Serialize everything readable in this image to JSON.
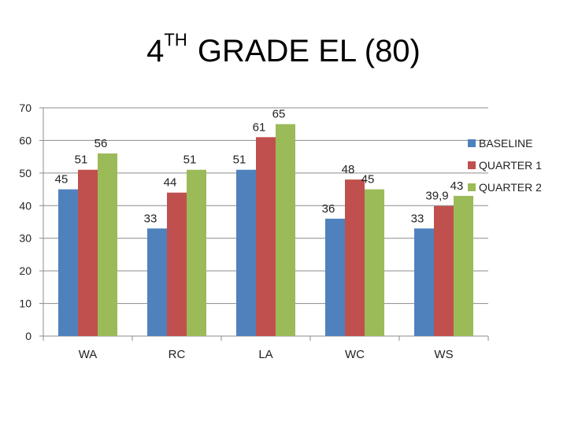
{
  "title": {
    "prefix": "4",
    "superscript": "TH",
    "rest": "GRADE EL (80)"
  },
  "chart_data": {
    "type": "bar",
    "title": "4TH GRADE EL (80)",
    "categories": [
      "WA",
      "RC",
      "LA",
      "WC",
      "WS"
    ],
    "series": [
      {
        "name": "BASELINE",
        "color": "#4f81bd",
        "values": [
          45,
          33,
          51,
          36,
          33
        ],
        "labels": [
          "45",
          "33",
          "51",
          "36",
          "33"
        ]
      },
      {
        "name": "QUARTER 1",
        "color": "#c0504d",
        "values": [
          51,
          44,
          61,
          48,
          39.9
        ],
        "labels": [
          "51",
          "44",
          "61",
          "48",
          "39,9"
        ]
      },
      {
        "name": "QUARTER 2",
        "color": "#9bbb59",
        "values": [
          56,
          51,
          65,
          45,
          43
        ],
        "labels": [
          "56",
          "51",
          "65",
          "45",
          "43"
        ]
      }
    ],
    "ylim": [
      0,
      70
    ],
    "yticks": [
      "0",
      "10",
      "20",
      "30",
      "40",
      "50",
      "60",
      "70"
    ],
    "grid": true,
    "legend": "right",
    "xlabel": "",
    "ylabel": ""
  }
}
